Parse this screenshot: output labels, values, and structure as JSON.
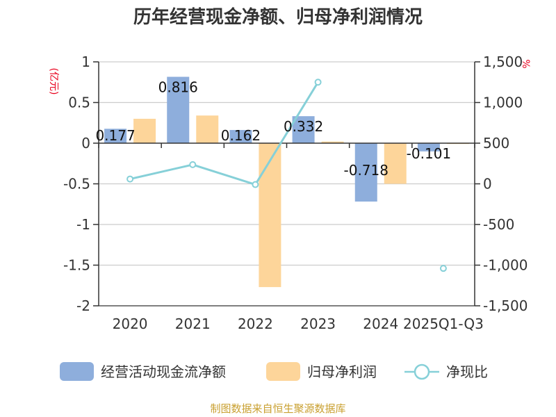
{
  "chart_data": {
    "type": "bar",
    "title": "历年经营现金净额、归母净利润情况",
    "categories": [
      "2020",
      "2021",
      "2022",
      "2023",
      "2024",
      "2025Q1-Q3"
    ],
    "series": [
      {
        "name": "经营活动现金流净额",
        "kind": "bar",
        "axis": "left",
        "color": "#8eaedc",
        "values": [
          0.177,
          0.816,
          0.162,
          0.332,
          -0.718,
          -0.101
        ],
        "labels": [
          "0.177",
          "0.816",
          "0.162",
          "0.332",
          "-0.718",
          "-0.101"
        ]
      },
      {
        "name": "归母净利润",
        "kind": "bar",
        "axis": "left",
        "color": "#fdd59a",
        "values": [
          0.3,
          0.34,
          -1.77,
          0.02,
          -0.5,
          -0.01
        ]
      },
      {
        "name": "净现比",
        "kind": "line",
        "axis": "right",
        "color": "#86d0d8",
        "values": [
          59,
          236,
          -9,
          1250,
          null,
          -1040
        ]
      }
    ],
    "y_left": {
      "unit": "(亿元)",
      "min": -2,
      "max": 1,
      "ticks": [
        1,
        0.5,
        0,
        -0.5,
        -1,
        -1.5,
        -2
      ],
      "tick_labels": [
        "1",
        "0.5",
        "0",
        "-0.5",
        "-1",
        "-1.5",
        "-2"
      ]
    },
    "y_right": {
      "unit": "%",
      "min": -1500,
      "max": 1500,
      "ticks": [
        1500,
        1000,
        500,
        0,
        -500,
        -1000,
        -1500
      ],
      "tick_labels": [
        "1,500",
        "1,000",
        "500",
        "0",
        "-500",
        "-1,000",
        "-1,500"
      ]
    },
    "legend_position": "bottom",
    "grid": true
  },
  "source": "制图数据来自恒生聚源数据库",
  "colors": {
    "unit_red": "#e8001c",
    "source_gold": "#c9a030",
    "grid": "#cccccc",
    "axis": "#333333"
  }
}
